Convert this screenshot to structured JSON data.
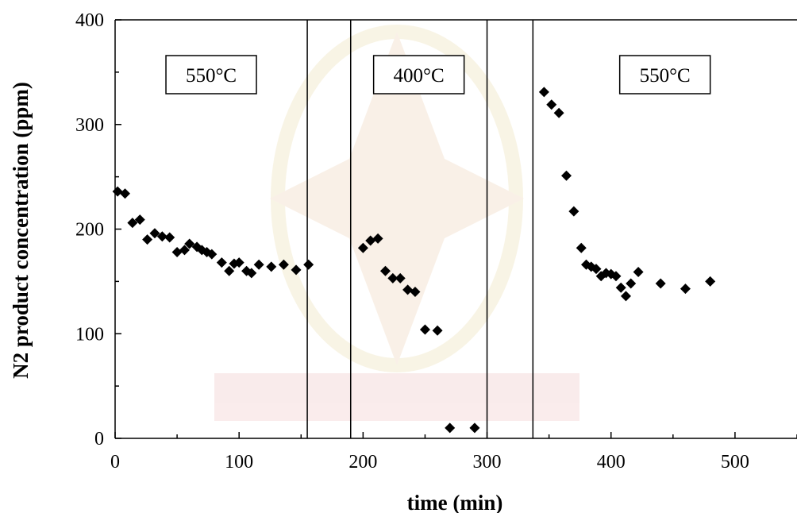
{
  "chart_data": {
    "type": "scatter",
    "xlabel": "time (min)",
    "ylabel": "N2 product concentration (ppm)",
    "xlim": [
      0,
      550
    ],
    "ylim": [
      0,
      400
    ],
    "x_ticks": [
      0,
      100,
      200,
      300,
      400,
      500
    ],
    "y_ticks": [
      0,
      100,
      200,
      300,
      400
    ],
    "grid": false,
    "marker": "diamond",
    "marker_color": "#000000",
    "vertical_lines": [
      155,
      190,
      300,
      337
    ],
    "region_labels": [
      {
        "text": "550°C",
        "x_start": 0,
        "x_end": 155
      },
      {
        "text": "400°C",
        "x_start": 190,
        "x_end": 300
      },
      {
        "text": "550°C",
        "x_start": 337,
        "x_end": 550
      }
    ],
    "series": [
      {
        "points": [
          [
            2,
            236
          ],
          [
            8,
            234
          ],
          [
            14,
            206
          ],
          [
            20,
            209
          ],
          [
            26,
            190
          ],
          [
            32,
            196
          ],
          [
            38,
            193
          ],
          [
            44,
            192
          ],
          [
            50,
            178
          ],
          [
            56,
            180
          ],
          [
            60,
            186
          ],
          [
            66,
            183
          ],
          [
            70,
            180
          ],
          [
            74,
            178
          ],
          [
            78,
            176
          ],
          [
            86,
            168
          ],
          [
            92,
            160
          ],
          [
            96,
            167
          ],
          [
            100,
            168
          ],
          [
            106,
            160
          ],
          [
            110,
            158
          ],
          [
            116,
            166
          ],
          [
            126,
            164
          ],
          [
            136,
            166
          ],
          [
            146,
            161
          ],
          [
            156,
            166
          ],
          [
            200,
            182
          ],
          [
            206,
            189
          ],
          [
            212,
            191
          ],
          [
            218,
            160
          ],
          [
            224,
            153
          ],
          [
            230,
            153
          ],
          [
            236,
            142
          ],
          [
            242,
            140
          ],
          [
            250,
            104
          ],
          [
            260,
            103
          ],
          [
            270,
            10
          ],
          [
            290,
            10
          ],
          [
            346,
            331
          ],
          [
            352,
            319
          ],
          [
            358,
            311
          ],
          [
            364,
            251
          ],
          [
            370,
            217
          ],
          [
            376,
            182
          ],
          [
            380,
            166
          ],
          [
            384,
            164
          ],
          [
            388,
            162
          ],
          [
            392,
            155
          ],
          [
            396,
            158
          ],
          [
            400,
            157
          ],
          [
            404,
            155
          ],
          [
            408,
            144
          ],
          [
            412,
            136
          ],
          [
            416,
            148
          ],
          [
            422,
            159
          ],
          [
            440,
            148
          ],
          [
            460,
            143
          ],
          [
            480,
            150
          ]
        ]
      }
    ]
  }
}
